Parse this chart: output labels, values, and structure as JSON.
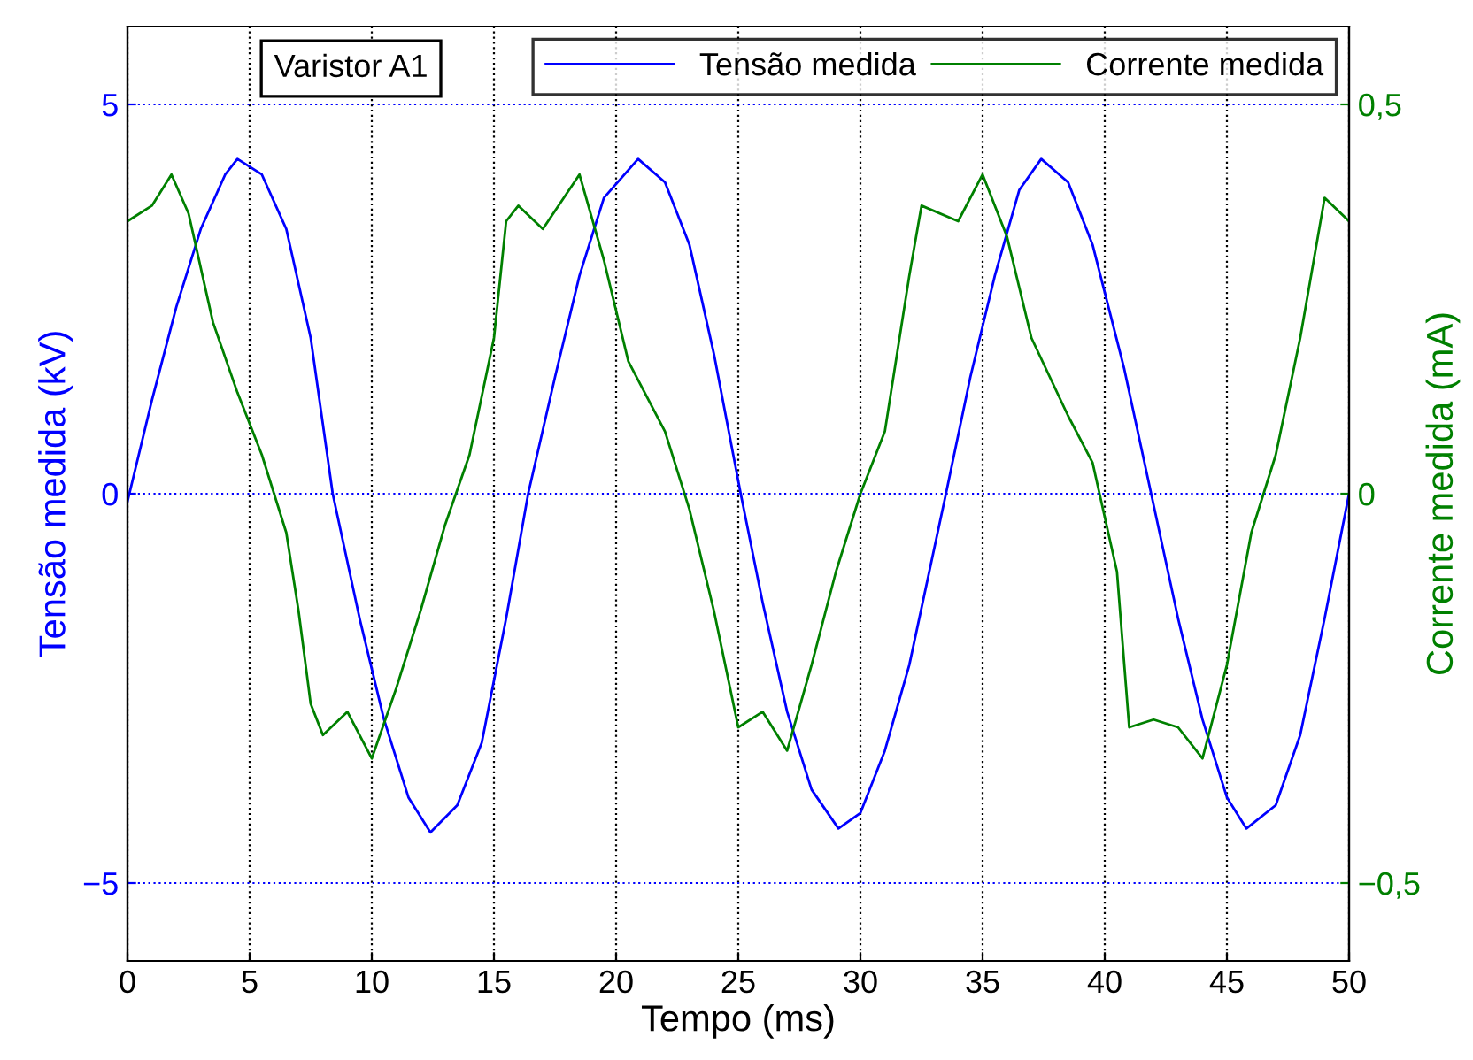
{
  "chart_data": {
    "type": "line",
    "xlabel": "Tempo (ms)",
    "ylabel": "Tensão medida (kV)",
    "y2label": "Corrente medida (mA)",
    "annotations": [
      "Varistor A1"
    ],
    "xlim": [
      0,
      50
    ],
    "xticks": [
      0,
      5,
      10,
      15,
      20,
      25,
      30,
      35,
      40,
      45,
      50
    ],
    "ylim": [
      -6,
      6
    ],
    "yticks": [
      {
        "value": -5,
        "label": "−5"
      },
      0,
      5
    ],
    "y2lim": [
      -0.6,
      0.6
    ],
    "y2ticks": [
      {
        "value": -0.5,
        "label": "−0,5"
      },
      {
        "value": 0,
        "label": "0"
      },
      {
        "value": 0.5,
        "label": "0,5"
      }
    ],
    "grid": true,
    "legend": "top right",
    "marker": "none",
    "line_style": "solid",
    "series": [
      {
        "name": "Tensão medida",
        "color": "#0000ff",
        "x": [
          0,
          1,
          2,
          3,
          4,
          4.5,
          5.5,
          6.5,
          7.5,
          8.4,
          9.5,
          10.5,
          11.5,
          12.4,
          13.5,
          14.5,
          15.5,
          16.4,
          17.5,
          18.5,
          19.5,
          20.9,
          22,
          23,
          24,
          25.1,
          26,
          27,
          28,
          29.1,
          30,
          31,
          32,
          33.5,
          34.5,
          35.5,
          36.5,
          37.4,
          38.5,
          39.5,
          40.8,
          41.9,
          43,
          44,
          45,
          45.8,
          47,
          48,
          49,
          50
        ],
        "values": [
          -0.1,
          1.2,
          2.4,
          3.4,
          4.1,
          4.3,
          4.1,
          3.4,
          2.0,
          0,
          -1.6,
          -2.9,
          -3.9,
          -4.35,
          -4.0,
          -3.2,
          -1.6,
          0,
          1.5,
          2.8,
          3.8,
          4.3,
          4.0,
          3.2,
          1.8,
          0,
          -1.4,
          -2.8,
          -3.8,
          -4.3,
          -4.1,
          -3.3,
          -2.2,
          0,
          1.5,
          2.8,
          3.9,
          4.3,
          4.0,
          3.2,
          1.6,
          0,
          -1.6,
          -2.9,
          -3.9,
          -4.3,
          -4.0,
          -3.1,
          -1.6,
          0
        ]
      },
      {
        "name": "Corrente medida",
        "color": "#008000",
        "axis": "y2",
        "x": [
          0,
          1,
          1.8,
          2.5,
          3.5,
          4.5,
          5.5,
          6.5,
          7,
          7.5,
          8,
          9,
          10,
          11,
          12,
          13,
          14,
          15,
          15.5,
          16,
          17,
          18.5,
          19.5,
          20.5,
          22,
          23,
          24,
          25,
          26,
          27,
          28,
          29,
          30,
          31,
          32,
          32.5,
          34,
          35,
          36,
          37,
          38.5,
          39.5,
          40.5,
          41,
          42,
          43,
          44,
          45,
          46,
          47,
          48,
          49,
          50
        ],
        "values": [
          0.35,
          0.37,
          0.41,
          0.36,
          0.22,
          0.13,
          0.05,
          -0.05,
          -0.15,
          -0.27,
          -0.31,
          -0.28,
          -0.34,
          -0.25,
          -0.15,
          -0.04,
          0.05,
          0.2,
          0.35,
          0.37,
          0.34,
          0.41,
          0.3,
          0.17,
          0.08,
          -0.02,
          -0.15,
          -0.3,
          -0.28,
          -0.33,
          -0.22,
          -0.1,
          0.0,
          0.08,
          0.28,
          0.37,
          0.35,
          0.41,
          0.33,
          0.2,
          0.1,
          0.04,
          -0.1,
          -0.3,
          -0.29,
          -0.3,
          -0.34,
          -0.22,
          -0.05,
          0.05,
          0.2,
          0.38,
          0.35
        ]
      }
    ]
  }
}
